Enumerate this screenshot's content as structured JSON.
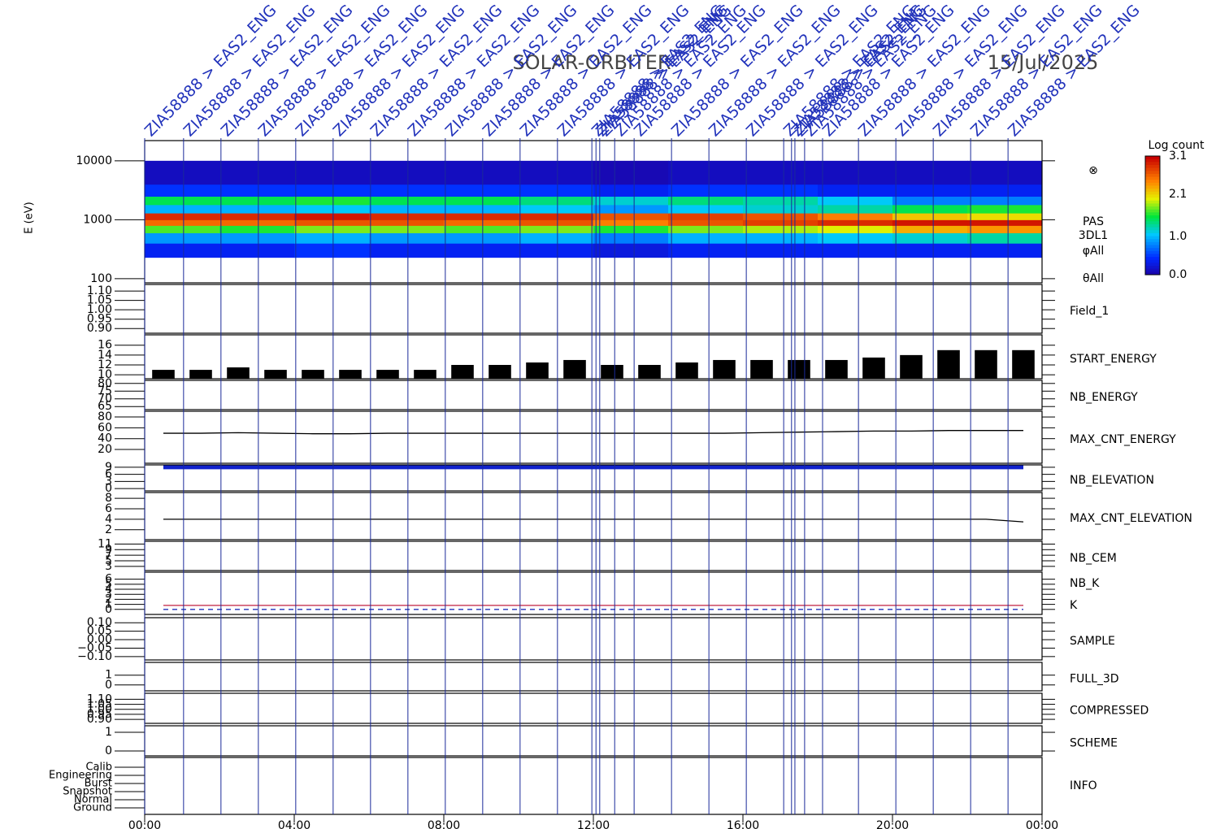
{
  "chart_data": {
    "type": "multipanel",
    "title": "SOLAR-ORBITER",
    "date": "15/Jul/2025",
    "xlim": [
      0,
      24
    ],
    "xticks": [
      {
        "value": 0,
        "label": "00:00"
      },
      {
        "value": 4,
        "label": "04:00"
      },
      {
        "value": 8,
        "label": "08:00"
      },
      {
        "value": 12,
        "label": "12:00"
      },
      {
        "value": 16,
        "label": "16:00"
      },
      {
        "value": 20,
        "label": "20:00"
      },
      {
        "value": 24,
        "label": "00:00"
      }
    ],
    "events": {
      "label": "ZIA58888 > EAS2_ENG",
      "x": [
        0,
        1.04,
        2.04,
        3.04,
        4.04,
        5.04,
        6.04,
        7.04,
        8.04,
        9.04,
        10.04,
        11.04,
        11.96,
        12.07,
        12.17,
        12.57,
        13.09,
        14.09,
        15.09,
        16.09,
        17.09,
        17.3,
        17.39,
        17.65,
        18.13,
        19.09,
        20.09,
        21.09,
        22.09,
        23.09
      ]
    },
    "panels": [
      {
        "type": "heatmap",
        "ylabel": "E (eV)",
        "log": true,
        "ylim": [
          85,
          22000
        ],
        "yticks": [
          100,
          1000,
          10000
        ],
        "x_edges": [
          0,
          2,
          4,
          6,
          8,
          10,
          12,
          14,
          16,
          18,
          20,
          22,
          24
        ],
        "energy_edges": [
          230,
          400,
          600,
          800,
          1000,
          1300,
          1800,
          2500,
          4000,
          10000
        ],
        "values": [
          [
            0.4,
            0.4,
            0.5,
            0.4,
            0.4,
            0.4,
            0.3,
            0.4,
            0.4,
            0.4,
            0.4,
            0.4
          ],
          [
            0.9,
            0.9,
            1.0,
            0.9,
            0.9,
            1.0,
            0.8,
            1.0,
            1.0,
            1.1,
            1.2,
            1.3
          ],
          [
            1.7,
            1.6,
            1.8,
            1.8,
            1.7,
            1.8,
            1.6,
            1.8,
            1.9,
            2.0,
            2.3,
            2.4
          ],
          [
            2.6,
            2.6,
            2.7,
            2.7,
            2.6,
            2.7,
            2.5,
            2.7,
            2.8,
            2.9,
            3.0,
            3.0
          ],
          [
            2.9,
            2.9,
            3.0,
            2.9,
            2.9,
            2.9,
            2.7,
            2.8,
            2.7,
            2.5,
            2.2,
            2.1
          ],
          [
            1.0,
            1.0,
            1.1,
            1.0,
            1.0,
            1.1,
            0.9,
            1.1,
            1.2,
            1.3,
            1.5,
            1.6
          ],
          [
            1.5,
            1.5,
            1.6,
            1.5,
            1.5,
            1.4,
            1.2,
            1.4,
            1.3,
            1.1,
            0.8,
            0.8
          ],
          [
            0.5,
            0.5,
            0.5,
            0.5,
            0.5,
            0.5,
            0.4,
            0.5,
            0.5,
            0.4,
            0.4,
            0.4
          ],
          [
            0.15,
            0.15,
            0.15,
            0.15,
            0.15,
            0.15,
            0.1,
            0.15,
            0.15,
            0.15,
            0.15,
            0.15
          ]
        ],
        "clim": [
          0,
          3.1
        ],
        "colorbar_title": "Log count",
        "colorbar_ticks": [
          {
            "value": 0,
            "label": "0.0"
          },
          {
            "value": 1,
            "label": "1.0"
          },
          2.1,
          3.1
        ],
        "side_labels": [
          "⊗",
          "PAS",
          "3DL1",
          "φAll",
          "θAll"
        ]
      },
      {
        "type": "empty",
        "ylim": [
          0.875,
          1.135
        ],
        "yticks": [
          {
            "value": 0.9,
            "label": "0.90"
          },
          {
            "value": 0.95,
            "label": "0.95"
          },
          {
            "value": 1.0,
            "label": "1.00"
          },
          {
            "value": 1.05,
            "label": "1.05"
          },
          {
            "value": 1.1,
            "label": "1.10"
          }
        ],
        "series": [
          {
            "name": "Field_1",
            "color": "#2233bb"
          }
        ]
      },
      {
        "type": "bar",
        "ylim": [
          9.2,
          18.1
        ],
        "yticks": [
          10,
          12,
          14,
          16
        ],
        "series": [
          {
            "name": "START_ENERGY",
            "color": "#000000",
            "values": [
              11,
              11,
              11.5,
              11,
              11,
              11,
              11,
              11,
              12,
              12,
              12.5,
              13,
              12,
              12,
              12.5,
              13,
              13,
              13,
              13,
              13.5,
              14,
              15,
              15,
              15
            ]
          }
        ]
      },
      {
        "type": "empty",
        "ylim": [
          63,
          82
        ],
        "yticks": [
          65,
          70,
          75,
          80
        ],
        "series": [
          {
            "name": "NB_ENERGY",
            "color": "#2233bb"
          }
        ]
      },
      {
        "type": "line",
        "ylim": [
          -5.5,
          90.6
        ],
        "yticks": [
          20,
          40,
          60,
          80
        ],
        "series": [
          {
            "name": "MAX_CNT_ENERGY",
            "color": "#000000",
            "values": [
              50,
              50,
              51,
              50,
              49,
              49,
              50,
              50,
              50,
              50,
              50,
              50,
              50,
              50,
              50,
              50,
              51,
              52,
              53,
              54,
              54,
              55,
              55,
              55
            ]
          }
        ]
      },
      {
        "type": "line",
        "ylim": [
          -1,
          10
        ],
        "yticks": [
          0,
          3,
          6,
          9
        ],
        "series": [
          {
            "name": "NB_ELEVATION",
            "color": "#1122cc",
            "values": [
              9,
              9,
              9,
              9,
              9,
              9,
              9,
              9,
              9,
              9,
              9,
              9,
              9,
              9,
              9,
              9,
              9,
              9,
              9,
              9,
              9,
              9,
              9,
              9
            ]
          }
        ]
      },
      {
        "type": "line",
        "ylim": [
          0.1,
          9.1
        ],
        "yticks": [
          2,
          4,
          6,
          8
        ],
        "series": [
          {
            "name": "MAX_CNT_ELEVATION",
            "color": "#000000",
            "values": [
              4,
              4,
              4,
              4,
              4,
              4,
              4,
              4,
              4,
              4,
              4,
              4,
              4,
              4,
              4,
              4,
              4,
              4,
              4,
              4,
              4,
              4,
              4,
              3.5
            ]
          }
        ]
      },
      {
        "type": "empty",
        "ylim": [
          1.5,
          12
        ],
        "yticks": [
          3,
          5,
          7,
          9,
          11
        ],
        "series": [
          {
            "name": "NB_CEM",
            "color": "#2233bb"
          }
        ]
      },
      {
        "type": "line",
        "ylim": [
          -1,
          7.4
        ],
        "yticks": [
          0,
          1,
          2,
          3,
          4,
          5,
          6
        ],
        "series": [
          {
            "name": "NB_K",
            "color": "#c02040",
            "values": [
              0.8,
              0.8,
              0.8,
              0.8,
              0.8,
              0.8,
              0.8,
              0.8,
              0.8,
              0.8,
              0.8,
              0.8,
              0.8,
              0.8,
              0.8,
              0.8,
              0.8,
              0.8,
              0.8,
              0.8,
              0.8,
              0.8,
              0.8,
              0.8
            ]
          },
          {
            "name": "K",
            "color": "#2233bb",
            "dash": true,
            "values": [
              0,
              0,
              0,
              0,
              0,
              0,
              0,
              0,
              0,
              0,
              0,
              0,
              0,
              0,
              0,
              0,
              0,
              0,
              0,
              0,
              0,
              0,
              0,
              0
            ]
          }
        ]
      },
      {
        "type": "empty",
        "ylim": [
          -0.12,
          0.13
        ],
        "yticks": [
          {
            "value": -0.1,
            "label": "−0.10"
          },
          {
            "value": -0.05,
            "label": "−0.05"
          },
          {
            "value": 0,
            "label": "0.00"
          },
          {
            "value": 0.05,
            "label": "0.05"
          },
          {
            "value": 0.1,
            "label": "0.10"
          }
        ],
        "series": [
          {
            "name": "SAMPLE",
            "color": "#2233bb"
          }
        ]
      },
      {
        "type": "empty",
        "ylim": [
          -0.6,
          2.3
        ],
        "yticks": [
          0,
          1
        ],
        "series": [
          {
            "name": "FULL_3D",
            "color": "#2233bb"
          }
        ]
      },
      {
        "type": "empty",
        "ylim": [
          0.86,
          1.16
        ],
        "yticks": [
          {
            "value": 0.9,
            "label": "0.90"
          },
          {
            "value": 0.95,
            "label": "0.95"
          },
          {
            "value": 1.0,
            "label": "1.00"
          },
          {
            "value": 1.05,
            "label": "1.05"
          },
          {
            "value": 1.1,
            "label": "1.10"
          }
        ],
        "series": [
          {
            "name": "COMPRESSED",
            "color": "#000000"
          }
        ]
      },
      {
        "type": "empty",
        "ylim": [
          -0.26,
          1.35
        ],
        "yticks": [
          0,
          1
        ],
        "series": [
          {
            "name": "SCHEME",
            "color": "#000000"
          }
        ]
      },
      {
        "type": "category",
        "categories": [
          "Calib",
          "Engineering",
          "Burst",
          "Snapshot",
          "Normal",
          "Ground"
        ],
        "series": [
          {
            "name": "INFO",
            "color": "#000000"
          }
        ]
      }
    ]
  }
}
